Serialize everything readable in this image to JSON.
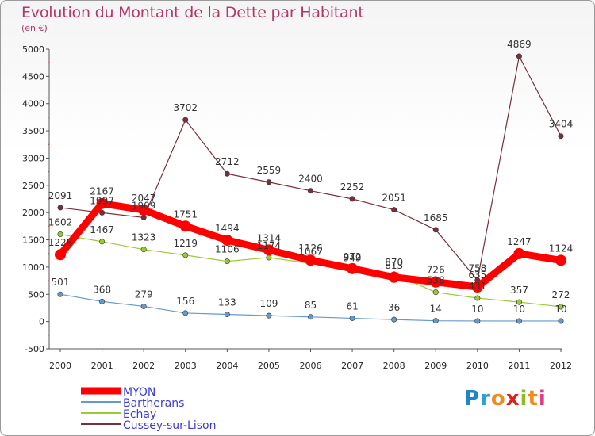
{
  "title": "Evolution du Montant de la Dette par Habitant",
  "subtitle": "(en €)",
  "logo_text": "Proxiti",
  "chart_data": {
    "type": "line",
    "title": "Evolution du Montant de la Dette par Habitant",
    "subtitle": "(en €)",
    "xlabel": "",
    "ylabel": "",
    "categories": [
      "2000",
      "2001",
      "2002",
      "2003",
      "2004",
      "2005",
      "2006",
      "2007",
      "2008",
      "2009",
      "2010",
      "2011",
      "2012"
    ],
    "y_ticks": [
      -500,
      0,
      500,
      1000,
      1500,
      2000,
      2500,
      3000,
      3500,
      4000,
      4500,
      5000
    ],
    "ylim": [
      -500,
      5000
    ],
    "grid": false,
    "legend_position": "bottom-left",
    "series": [
      {
        "name": "MYON",
        "color": "#ff0000",
        "values": [
          1228,
          2167,
          2047,
          1751,
          1494,
          1314,
          1126,
          972,
          813,
          726,
          635,
          1247,
          1124
        ]
      },
      {
        "name": "Bartherans",
        "color": "#6699cc",
        "values": [
          501,
          368,
          279,
          156,
          133,
          109,
          85,
          61,
          36,
          14,
          10,
          10,
          10
        ]
      },
      {
        "name": "Echay",
        "color": "#99cc33",
        "values": [
          1602,
          1467,
          1323,
          1219,
          1106,
          1174,
          1067,
          949,
          870,
          538,
          431,
          357,
          272
        ]
      },
      {
        "name": "Cussey-sur-Lison",
        "color": "#7a2e3a",
        "values": [
          2091,
          1997,
          1909,
          3702,
          2712,
          2559,
          2400,
          2252,
          2051,
          1685,
          758,
          4869,
          3404
        ]
      }
    ]
  }
}
